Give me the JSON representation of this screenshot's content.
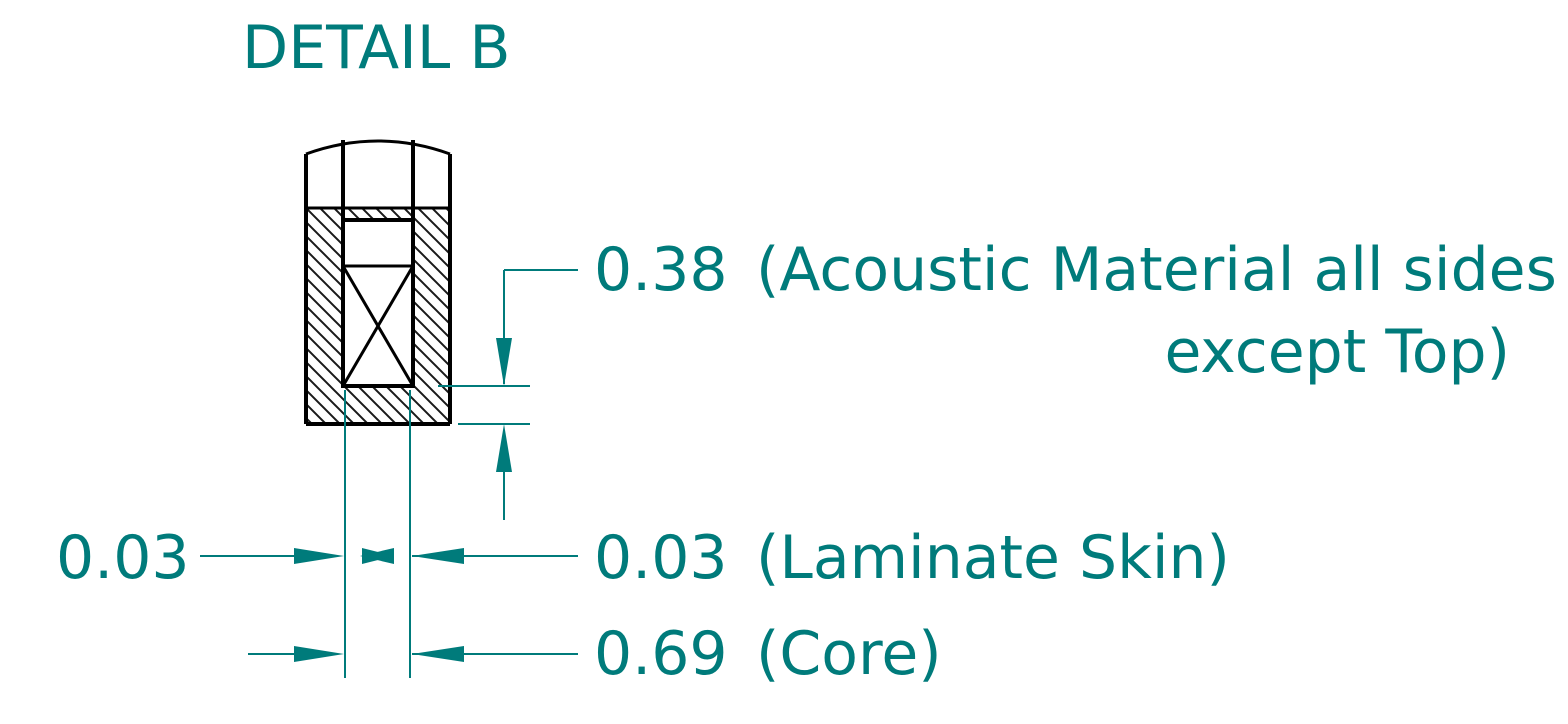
{
  "title": "DETAIL B",
  "dimensions": {
    "acoustic": {
      "value": "0.38",
      "description_line1": "(Acoustic Material all sides",
      "description_line2": "except Top)"
    },
    "skin_left": {
      "value": "0.03"
    },
    "skin_right": {
      "value": "0.03",
      "description": "(Laminate Skin)"
    },
    "core": {
      "value": "0.69",
      "description": "(Core)"
    }
  },
  "colors": {
    "dimension": "#007b7b",
    "outline": "#000000",
    "background": "#ffffff"
  }
}
